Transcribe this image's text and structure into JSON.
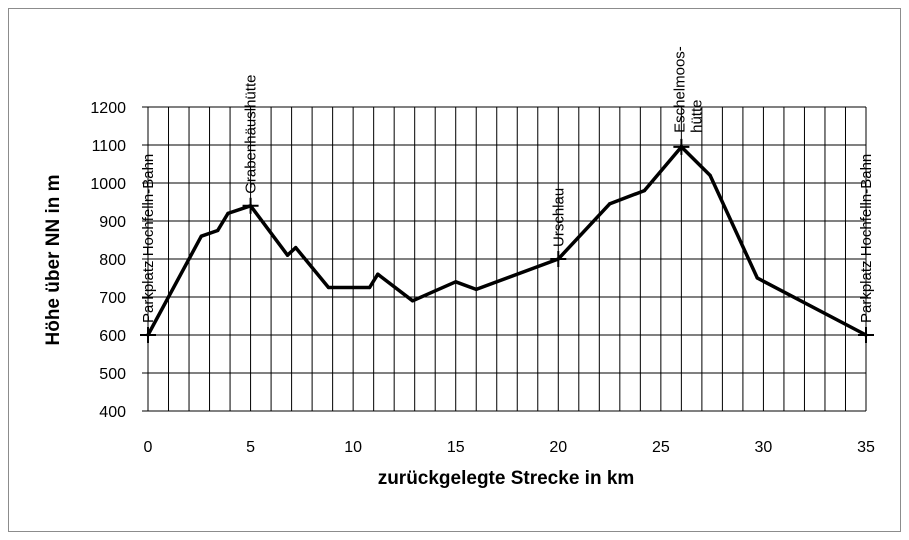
{
  "chart_data": {
    "type": "line",
    "title": "",
    "xlabel": "zurückgelegte Strecke in km",
    "ylabel": "Höhe über NN in m",
    "xlim": [
      0,
      35
    ],
    "ylim": [
      400,
      1200
    ],
    "x_major_ticks": [
      0,
      5,
      10,
      15,
      20,
      25,
      30,
      35
    ],
    "x_major_labels": [
      "0",
      "5",
      "10",
      "15",
      "20",
      "25",
      "30",
      "35"
    ],
    "y_ticks": [
      400,
      500,
      600,
      700,
      800,
      900,
      1000,
      1100,
      1200
    ],
    "y_labels": [
      "400",
      "500",
      "600",
      "700",
      "800",
      "900",
      "1000",
      "1100",
      "1200"
    ],
    "grid": true,
    "grid_x_step_km": 1,
    "line_color": "#000000",
    "series": [
      {
        "name": "",
        "x": [
          0,
          2.6,
          3.4,
          3.9,
          5,
          6.8,
          7.2,
          8.8,
          10.8,
          11.2,
          12.9,
          15,
          16,
          20,
          22.5,
          24.2,
          26,
          27.4,
          29.7,
          35
        ],
        "y": [
          600,
          860,
          875,
          920,
          940,
          810,
          830,
          725,
          725,
          760,
          690,
          740,
          720,
          800,
          945,
          980,
          1095,
          1020,
          750,
          600
        ]
      }
    ],
    "markers": [
      {
        "x": 0,
        "y": 600,
        "label": "Parkplatz Hochfelln-Bahn"
      },
      {
        "x": 5,
        "y": 940,
        "label": "Grabenhäuslhütte"
      },
      {
        "x": 20,
        "y": 800,
        "label": "Urschlau"
      },
      {
        "x": 26,
        "y": 1095,
        "label_lines": [
          "Eschelmoos-",
          "hütte"
        ]
      },
      {
        "x": 35,
        "y": 600,
        "label": "Parkplatz Hochfelln-Bahn"
      }
    ]
  }
}
